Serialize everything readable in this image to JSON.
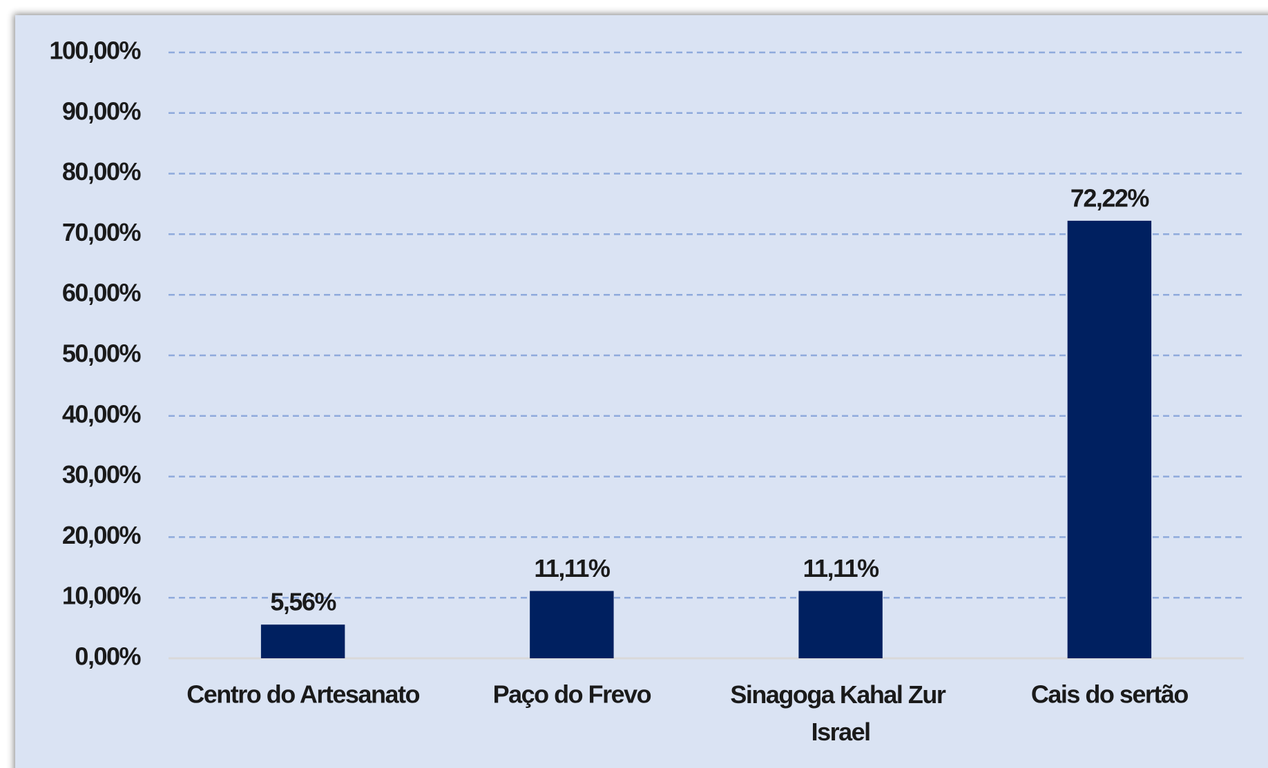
{
  "chart_data": {
    "type": "bar",
    "categories": [
      "Centro do Artesanato",
      "Paço do Frevo",
      "Sinagoga Kahal Zur Israel",
      "Cais do sertão"
    ],
    "values": [
      5.56,
      11.11,
      11.11,
      72.22
    ],
    "value_labels": [
      "5,56%",
      "11,11%",
      "11,11%",
      "72,22%"
    ],
    "color": "#002060",
    "ylim": [
      0,
      100
    ],
    "yticks": [
      {
        "value": 0,
        "label": "0,00%"
      },
      {
        "value": 10,
        "label": "10,00%"
      },
      {
        "value": 20,
        "label": "20,00%"
      },
      {
        "value": 30,
        "label": "30,00%"
      },
      {
        "value": 40,
        "label": "40,00%"
      },
      {
        "value": 50,
        "label": "50,00%"
      },
      {
        "value": 60,
        "label": "60,00%"
      },
      {
        "value": 70,
        "label": "70,00%"
      },
      {
        "value": 80,
        "label": "80,00%"
      },
      {
        "value": 90,
        "label": "90,00%"
      },
      {
        "value": 100,
        "label": "100,00%"
      }
    ],
    "grid": true
  }
}
